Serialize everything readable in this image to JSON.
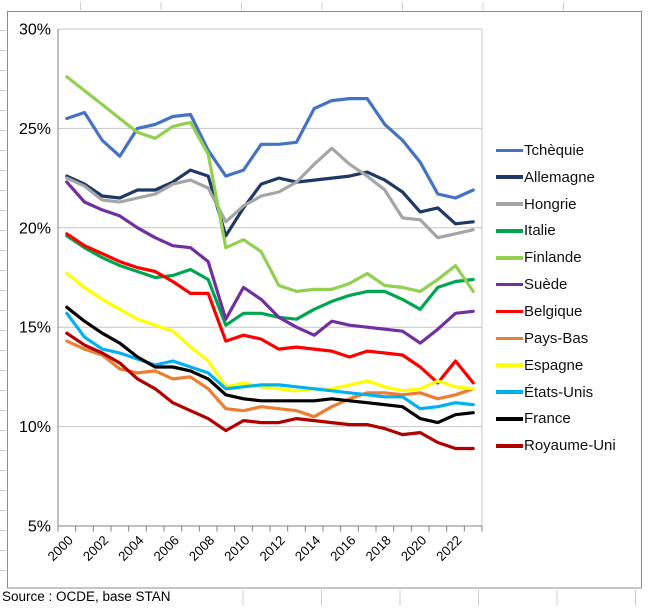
{
  "source_note": "Source : OCDE, base STAN",
  "chart_data": {
    "type": "line",
    "title": "",
    "xlabel": "",
    "ylabel": "",
    "ylim": [
      5,
      30
    ],
    "grid": "horizontal",
    "legend_position": "right",
    "x": [
      2000,
      2001,
      2002,
      2003,
      2004,
      2005,
      2006,
      2007,
      2008,
      2009,
      2010,
      2011,
      2012,
      2013,
      2014,
      2015,
      2016,
      2017,
      2018,
      2019,
      2020,
      2021,
      2022,
      2023
    ],
    "x_tick_labels": [
      "2000",
      "2002",
      "2004",
      "2006",
      "2008",
      "2010",
      "2012",
      "2014",
      "2016",
      "2018",
      "2020",
      "2022"
    ],
    "y_ticks": {
      "values": [
        30,
        25,
        20,
        15,
        10,
        5
      ],
      "labels": [
        "30%",
        "25%",
        "20%",
        "15%",
        "10%",
        "5%"
      ]
    },
    "series": [
      {
        "name": "Tchèquie",
        "color": "#4472C4",
        "values": [
          25.5,
          25.8,
          24.4,
          23.6,
          25.0,
          25.2,
          25.6,
          25.7,
          23.9,
          22.6,
          22.9,
          24.2,
          24.2,
          24.3,
          26.0,
          26.4,
          26.5,
          26.5,
          25.2,
          24.4,
          23.3,
          21.7,
          21.5,
          21.9
        ]
      },
      {
        "name": "Allemagne",
        "color": "#1F3864",
        "values": [
          22.6,
          22.2,
          21.6,
          21.5,
          21.9,
          21.9,
          22.3,
          22.9,
          22.6,
          19.6,
          21.0,
          22.2,
          22.5,
          22.3,
          22.4,
          22.5,
          22.6,
          22.8,
          22.4,
          21.8,
          20.8,
          21.0,
          20.2,
          20.3
        ]
      },
      {
        "name": "Hongrie",
        "color": "#A5A5A5",
        "values": [
          22.5,
          22.1,
          21.4,
          21.3,
          21.5,
          21.7,
          22.2,
          22.4,
          22.0,
          20.3,
          21.1,
          21.6,
          21.8,
          22.3,
          23.2,
          24.0,
          23.2,
          22.6,
          21.9,
          20.5,
          20.4,
          19.5,
          19.7,
          19.9
        ]
      },
      {
        "name": "Italie",
        "color": "#00A550",
        "values": [
          19.6,
          19.0,
          18.5,
          18.1,
          17.8,
          17.5,
          17.6,
          17.9,
          17.4,
          15.1,
          15.7,
          15.7,
          15.5,
          15.4,
          15.9,
          16.3,
          16.6,
          16.8,
          16.8,
          16.4,
          15.9,
          17.0,
          17.3,
          17.4
        ]
      },
      {
        "name": "Finlande",
        "color": "#92D050",
        "values": [
          27.6,
          26.9,
          26.2,
          25.5,
          24.8,
          24.5,
          25.1,
          25.3,
          23.7,
          19.0,
          19.4,
          18.8,
          17.1,
          16.8,
          16.9,
          16.9,
          17.2,
          17.7,
          17.1,
          17.0,
          16.8,
          17.4,
          18.1,
          16.8
        ]
      },
      {
        "name": "Suède",
        "color": "#7030A0",
        "values": [
          22.3,
          21.3,
          20.9,
          20.6,
          20.0,
          19.5,
          19.1,
          19.0,
          18.3,
          15.4,
          17.0,
          16.4,
          15.5,
          15.0,
          14.6,
          15.3,
          15.1,
          15.0,
          14.9,
          14.8,
          14.2,
          14.9,
          15.7,
          15.8
        ]
      },
      {
        "name": "Belgique",
        "color": "#FF0000",
        "values": [
          19.7,
          19.1,
          18.7,
          18.3,
          18.0,
          17.8,
          17.3,
          16.7,
          16.7,
          14.3,
          14.6,
          14.4,
          13.9,
          14.0,
          13.9,
          13.8,
          13.5,
          13.8,
          13.7,
          13.6,
          13.0,
          12.2,
          13.3,
          12.2
        ]
      },
      {
        "name": "Pays-Bas",
        "color": "#ED7D31",
        "values": [
          14.3,
          13.9,
          13.6,
          12.9,
          12.7,
          12.8,
          12.4,
          12.5,
          11.9,
          10.9,
          10.8,
          11.0,
          10.9,
          10.8,
          10.5,
          11.0,
          11.4,
          11.7,
          11.7,
          11.6,
          11.7,
          11.4,
          11.6,
          11.9
        ]
      },
      {
        "name": "Espagne",
        "color": "#FFFF00",
        "values": [
          17.7,
          17.0,
          16.4,
          15.9,
          15.4,
          15.1,
          14.8,
          14.0,
          13.3,
          12.0,
          12.2,
          12.0,
          11.9,
          11.8,
          11.9,
          11.9,
          12.1,
          12.3,
          12.0,
          11.8,
          11.9,
          12.3,
          12.0,
          11.9
        ]
      },
      {
        "name": "États-Unis",
        "color": "#00B0F0",
        "values": [
          15.7,
          14.5,
          13.9,
          13.7,
          13.4,
          13.1,
          13.3,
          13.0,
          12.7,
          11.9,
          12.0,
          12.1,
          12.1,
          12.0,
          11.9,
          11.8,
          11.7,
          11.6,
          11.5,
          11.5,
          10.9,
          11.0,
          11.2,
          11.1
        ]
      },
      {
        "name": "France",
        "color": "#000000",
        "values": [
          16.0,
          15.3,
          14.7,
          14.2,
          13.5,
          13.0,
          13.0,
          12.8,
          12.4,
          11.6,
          11.4,
          11.3,
          11.3,
          11.3,
          11.3,
          11.4,
          11.3,
          11.2,
          11.1,
          11.0,
          10.4,
          10.2,
          10.6,
          10.7
        ]
      },
      {
        "name": "Royaume-Uni",
        "color": "#B00000",
        "values": [
          14.7,
          14.1,
          13.7,
          13.2,
          12.4,
          11.9,
          11.2,
          10.8,
          10.4,
          9.8,
          10.3,
          10.2,
          10.2,
          10.4,
          10.3,
          10.2,
          10.1,
          10.1,
          9.9,
          9.6,
          9.7,
          9.2,
          8.9,
          8.9
        ]
      }
    ]
  }
}
